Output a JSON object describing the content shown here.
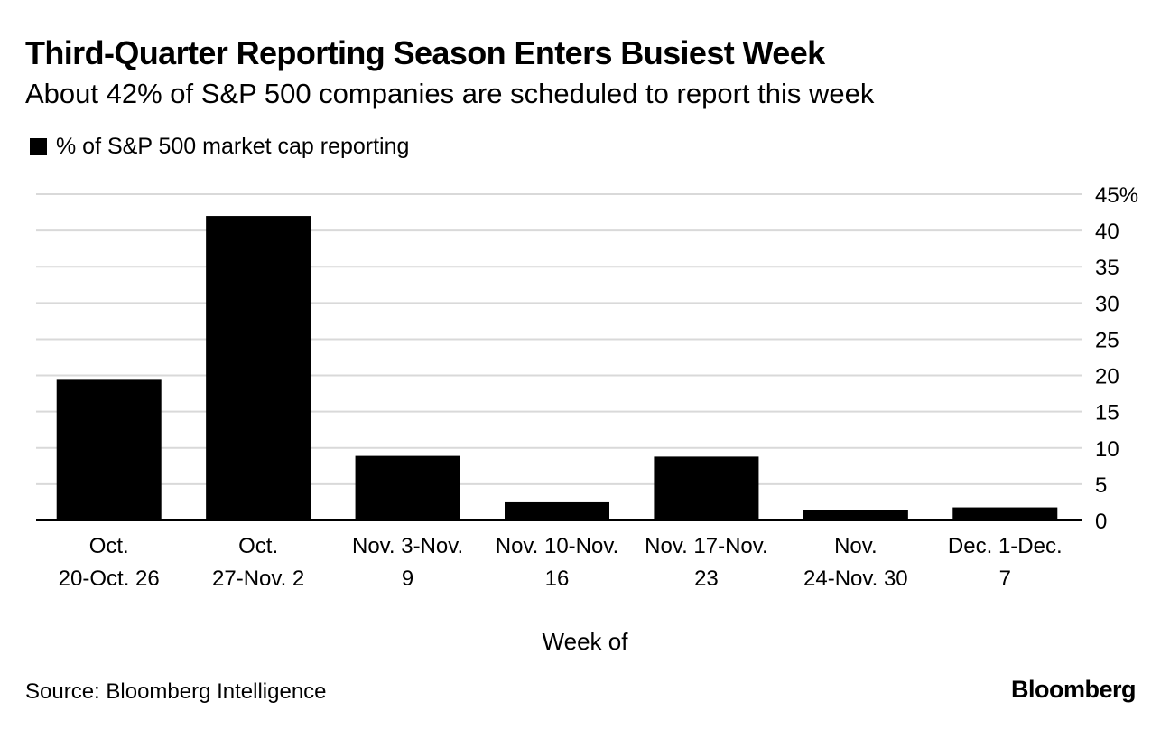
{
  "chart_data": {
    "type": "bar",
    "title": "Third-Quarter Reporting Season Enters Busiest Week",
    "subtitle": "About 42% of S&P 500 companies are scheduled to report this week",
    "legend": [
      "% of S&P 500 market cap reporting"
    ],
    "legend_position": "top-left",
    "categories": [
      [
        "Oct.",
        "20-Oct. 26"
      ],
      [
        "Oct.",
        "27-Nov. 2"
      ],
      [
        "Nov. 3-Nov.",
        "9"
      ],
      [
        "Nov. 10-Nov.",
        "16"
      ],
      [
        "Nov. 17-Nov.",
        "23"
      ],
      [
        "Nov.",
        "24-Nov. 30"
      ],
      [
        "Dec. 1-Dec.",
        "7"
      ]
    ],
    "series": [
      {
        "name": "% of S&P 500 market cap reporting",
        "values": [
          19.4,
          42.0,
          8.9,
          2.5,
          8.8,
          1.4,
          1.8
        ]
      }
    ],
    "xlabel": "Week of",
    "ylabel": "",
    "ylim": [
      0,
      45
    ],
    "yticks": [
      0,
      5,
      10,
      15,
      20,
      25,
      30,
      35,
      40,
      45
    ],
    "ytick_labels": [
      "0",
      "5",
      "10",
      "15",
      "20",
      "25",
      "30",
      "35",
      "40",
      "45%"
    ],
    "y_axis_side": "right",
    "grid": true,
    "bar_color": "#000000",
    "grid_color": "#d9d9d9"
  },
  "footer": {
    "source": "Source: Bloomberg Intelligence",
    "brand": "Bloomberg"
  }
}
